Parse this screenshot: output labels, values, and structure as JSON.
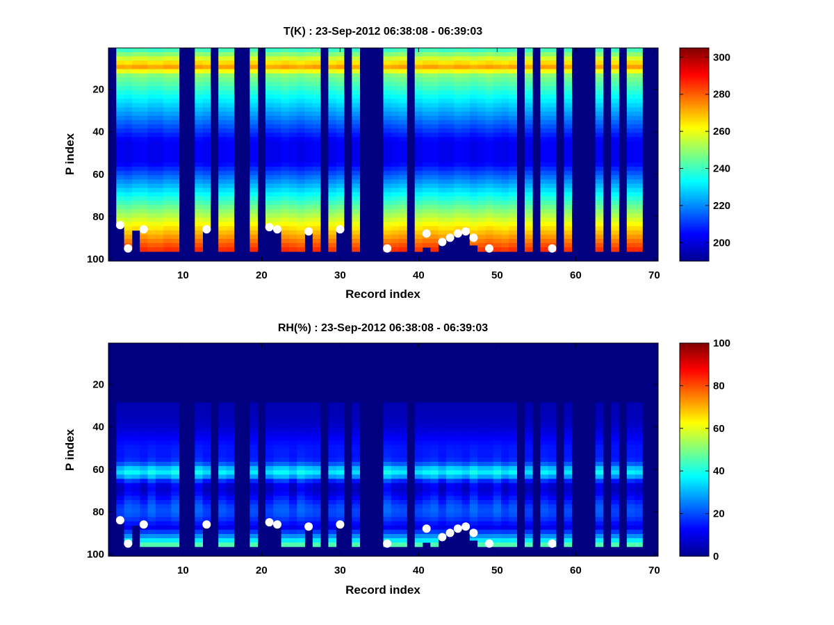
{
  "chart_data": [
    {
      "type": "heatmap",
      "title": "T(K) : 23-Sep-2012 06:38:08 - 06:39:03",
      "xlabel": "Record index",
      "ylabel": "P index",
      "xlim": [
        0.5,
        70.5
      ],
      "ylim": [
        0.5,
        101
      ],
      "y_reversed": true,
      "xticks": [
        10,
        20,
        30,
        40,
        50,
        60,
        70
      ],
      "yticks": [
        20,
        40,
        60,
        80,
        100
      ],
      "colormap": "jet",
      "clim": [
        190,
        305
      ],
      "colorbar_ticks": [
        200,
        220,
        240,
        260,
        280,
        300
      ],
      "masked_fill_color": "#000080",
      "empty_records": [
        1,
        10,
        11,
        14,
        17,
        18,
        20,
        28,
        31,
        33,
        34,
        35,
        39,
        53,
        55,
        58,
        60,
        61,
        62,
        64,
        66,
        69,
        70
      ],
      "profile_bottoms": {
        "2": 84,
        "3": 95,
        "4": 86,
        "5": 96,
        "6": 96,
        "7": 96,
        "8": 96,
        "9": 96,
        "12": 96,
        "13": 86,
        "15": 96,
        "16": 96,
        "19": 96,
        "21": 85,
        "22": 86,
        "23": 96,
        "24": 96,
        "25": 96,
        "26": 87,
        "27": 96,
        "29": 96,
        "30": 86,
        "32": 96,
        "36": 96,
        "37": 96,
        "38": 96,
        "40": 96,
        "41": 94,
        "42": 96,
        "43": 92,
        "44": 90,
        "45": 88,
        "46": 87,
        "47": 93,
        "48": 96,
        "49": 96,
        "50": 96,
        "51": 96,
        "52": 96,
        "54": 96,
        "56": 96,
        "57": 96,
        "59": 96,
        "63": 96,
        "65": 96,
        "67": 96,
        "68": 96
      },
      "series": [
        {
          "name": "",
          "marker": "white-circle",
          "points": [
            [
              2,
              84
            ],
            [
              3,
              95
            ],
            [
              5,
              86
            ],
            [
              13,
              86
            ],
            [
              21,
              85
            ],
            [
              22,
              86
            ],
            [
              26,
              87
            ],
            [
              30,
              86
            ],
            [
              36,
              95
            ],
            [
              41,
              88
            ],
            [
              43,
              92
            ],
            [
              44,
              90
            ],
            [
              45,
              88
            ],
            [
              46,
              87
            ],
            [
              47,
              90
            ],
            [
              49,
              95
            ],
            [
              57,
              95
            ]
          ]
        }
      ]
    },
    {
      "type": "heatmap",
      "title": "RH(%) : 23-Sep-2012 06:38:08 - 06:39:03",
      "xlabel": "Record index",
      "ylabel": "P index",
      "xlim": [
        0.5,
        70.5
      ],
      "ylim": [
        0.5,
        101
      ],
      "y_reversed": true,
      "xticks": [
        10,
        20,
        30,
        40,
        50,
        60,
        70
      ],
      "yticks": [
        20,
        40,
        60,
        80,
        100
      ],
      "colormap": "jet",
      "clim": [
        0,
        100
      ],
      "colorbar_ticks": [
        0,
        20,
        40,
        60,
        80,
        100
      ],
      "masked_fill_color": "#000080",
      "empty_records": [
        1,
        10,
        11,
        14,
        17,
        18,
        20,
        28,
        31,
        33,
        34,
        35,
        39,
        53,
        55,
        58,
        60,
        61,
        62,
        64,
        66,
        69,
        70
      ],
      "profile_bottoms": {
        "2": 84,
        "3": 95,
        "4": 86,
        "5": 96,
        "6": 96,
        "7": 96,
        "8": 96,
        "9": 96,
        "12": 96,
        "13": 86,
        "15": 96,
        "16": 96,
        "19": 96,
        "21": 85,
        "22": 86,
        "23": 96,
        "24": 96,
        "25": 96,
        "26": 87,
        "27": 96,
        "29": 96,
        "30": 86,
        "32": 96,
        "36": 96,
        "37": 96,
        "38": 96,
        "40": 96,
        "41": 94,
        "42": 96,
        "43": 92,
        "44": 90,
        "45": 88,
        "46": 87,
        "47": 93,
        "48": 96,
        "49": 96,
        "50": 96,
        "51": 96,
        "52": 96,
        "54": 96,
        "56": 96,
        "57": 96,
        "59": 96,
        "63": 96,
        "65": 96,
        "67": 96,
        "68": 96
      },
      "series": [
        {
          "name": "",
          "marker": "white-circle",
          "points": [
            [
              2,
              84
            ],
            [
              3,
              95
            ],
            [
              5,
              86
            ],
            [
              13,
              86
            ],
            [
              21,
              85
            ],
            [
              22,
              86
            ],
            [
              26,
              87
            ],
            [
              30,
              86
            ],
            [
              36,
              95
            ],
            [
              41,
              88
            ],
            [
              43,
              92
            ],
            [
              44,
              90
            ],
            [
              45,
              88
            ],
            [
              46,
              87
            ],
            [
              47,
              90
            ],
            [
              49,
              95
            ],
            [
              57,
              95
            ]
          ]
        }
      ]
    }
  ]
}
